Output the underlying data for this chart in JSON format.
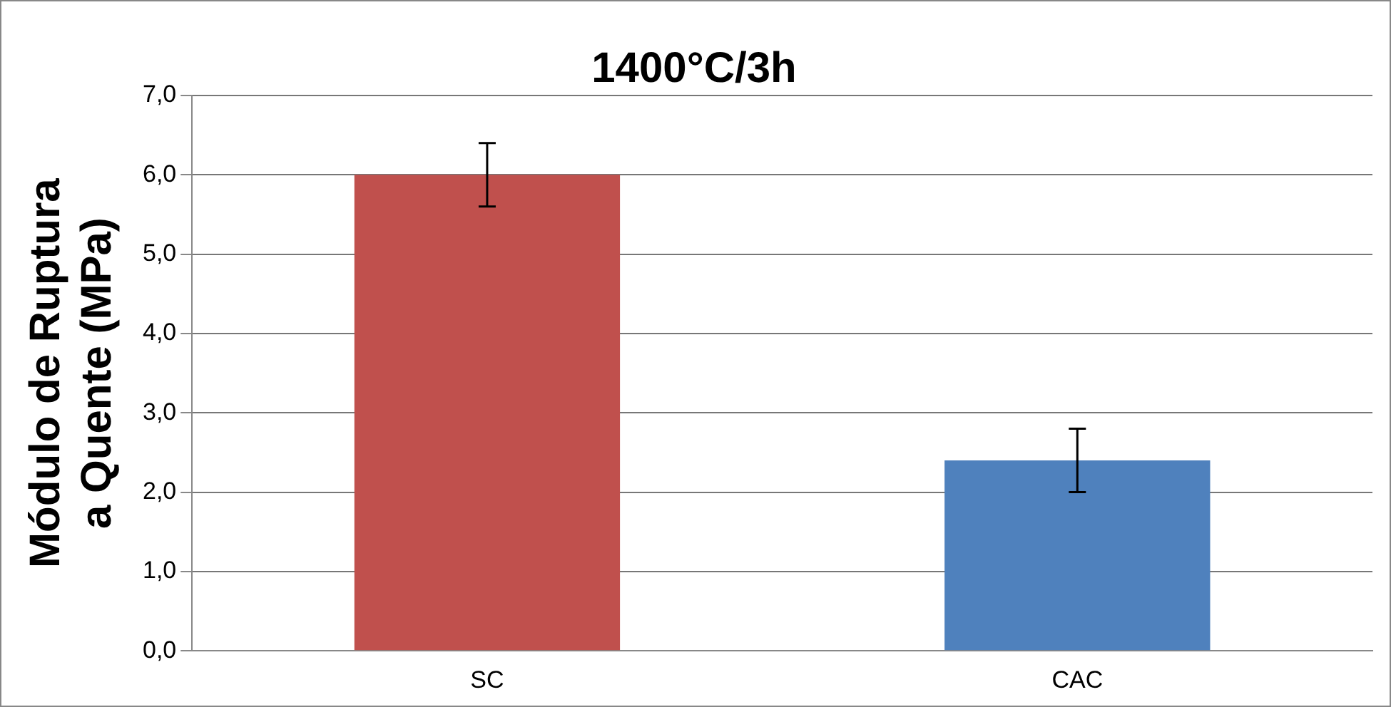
{
  "chart_data": {
    "type": "bar",
    "title": "1400°C/3h",
    "ylabel": "Módulo de Ruptura\na Quente (MPa)",
    "categories": [
      "SC",
      "CAC"
    ],
    "values": [
      6.0,
      2.4
    ],
    "colors": [
      "#c0504d",
      "#4f81bd"
    ],
    "errors": [
      0.4,
      0.4
    ],
    "ylim": [
      0,
      7
    ],
    "yticks": [
      {
        "value": 0,
        "label": "0,0"
      },
      {
        "value": 1,
        "label": "1,0"
      },
      {
        "value": 2,
        "label": "2,0"
      },
      {
        "value": 3,
        "label": "3,0"
      },
      {
        "value": 4,
        "label": "4,0"
      },
      {
        "value": 5,
        "label": "5,0"
      },
      {
        "value": 6,
        "label": "6,0"
      },
      {
        "value": 7,
        "label": "7,0"
      }
    ],
    "grid": "y",
    "legend": false
  }
}
